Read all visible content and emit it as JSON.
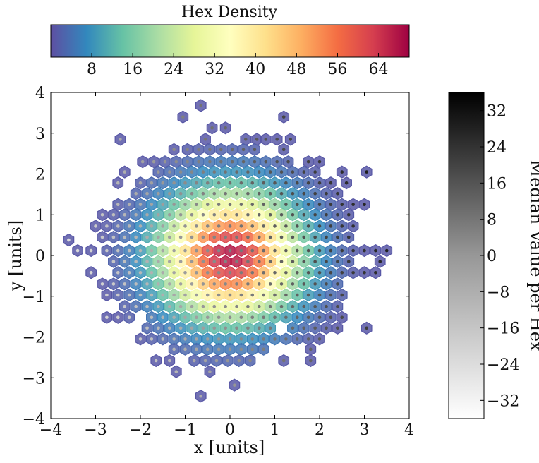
{
  "chart_data": {
    "type": "heatmap",
    "subtype": "hexbin",
    "xlabel": "x [units]",
    "ylabel": "y [units]",
    "xlim": [
      -4,
      4
    ],
    "ylim": [
      -4,
      4
    ],
    "x_ticks": [
      -4,
      -3,
      -2,
      -1,
      0,
      1,
      2,
      3,
      4
    ],
    "y_ticks": [
      -4,
      -3,
      -2,
      -1,
      0,
      1,
      2,
      3,
      4
    ],
    "grid": false,
    "hex_spacing_x": 0.236,
    "hex_row_step_y": 0.205,
    "density_colorbar": {
      "title": "Hex Density",
      "colormap": "Spectral_r",
      "range": [
        0,
        70
      ],
      "ticks": [
        8,
        16,
        24,
        32,
        40,
        48,
        56,
        64
      ],
      "orientation": "horizontal",
      "placement": "top"
    },
    "median_colorbar": {
      "label": "Median Value per Hex",
      "colormap": "Greys",
      "range": [
        -36,
        36
      ],
      "ticks": [
        -32,
        -24,
        -16,
        -8,
        0,
        8,
        16,
        24,
        32
      ],
      "orientation": "vertical",
      "placement": "right"
    },
    "density_model": {
      "peak": 68,
      "sigma": 1.0
    },
    "median_model": {
      "slope": 7.5
    },
    "hexes": [
      [
        -0.65,
        3.68
      ],
      [
        -1.05,
        3.4
      ],
      [
        1.2,
        3.4
      ],
      [
        -0.4,
        3.13
      ],
      [
        -0.1,
        3.13
      ],
      [
        -2.45,
        2.85
      ],
      [
        -0.55,
        2.85
      ],
      [
        0.35,
        2.85
      ],
      [
        0.6,
        2.85
      ],
      [
        0.8,
        2.85
      ],
      [
        1.05,
        2.85
      ],
      [
        1.35,
        2.85
      ],
      [
        -1.25,
        2.6
      ],
      [
        -0.95,
        2.6
      ],
      [
        -0.7,
        2.6
      ],
      [
        -0.45,
        2.6
      ],
      [
        -0.2,
        2.6
      ],
      [
        0.05,
        2.6
      ],
      [
        0.3,
        2.6
      ],
      [
        0.55,
        2.6
      ],
      [
        1.2,
        2.6
      ],
      [
        -1.95,
        2.3
      ],
      [
        -1.7,
        2.3
      ],
      [
        -1.45,
        2.3
      ],
      [
        -1.2,
        2.3
      ],
      [
        -0.95,
        2.3
      ],
      [
        -0.7,
        2.3
      ],
      [
        -0.45,
        2.3
      ],
      [
        -0.2,
        2.3
      ],
      [
        0.05,
        2.3
      ],
      [
        0.3,
        2.3
      ],
      [
        0.55,
        2.3
      ],
      [
        0.8,
        2.3
      ],
      [
        1.05,
        2.3
      ],
      [
        1.3,
        2.3
      ],
      [
        1.75,
        2.3
      ],
      [
        2.0,
        2.3
      ],
      [
        -2.35,
        2.05
      ],
      [
        -1.6,
        2.05
      ],
      [
        -1.35,
        2.05
      ],
      [
        -1.1,
        2.05
      ],
      [
        -0.85,
        2.05
      ],
      [
        -0.6,
        2.05
      ],
      [
        -0.35,
        2.05
      ],
      [
        -0.1,
        2.05
      ],
      [
        0.15,
        2.05
      ],
      [
        0.4,
        2.05
      ],
      [
        0.65,
        2.05
      ],
      [
        0.9,
        2.05
      ],
      [
        1.15,
        2.05
      ],
      [
        1.4,
        2.05
      ],
      [
        1.65,
        2.05
      ],
      [
        1.9,
        2.05
      ],
      [
        2.5,
        2.05
      ],
      [
        3.05,
        2.05
      ],
      [
        -2.5,
        1.78
      ],
      [
        -2.0,
        1.78
      ],
      [
        -1.75,
        1.78
      ],
      [
        -1.5,
        1.78
      ],
      [
        -1.25,
        1.78
      ],
      [
        -1.0,
        1.78
      ],
      [
        -0.75,
        1.78
      ],
      [
        -0.5,
        1.78
      ],
      [
        -0.25,
        1.78
      ],
      [
        0.0,
        1.78
      ],
      [
        0.25,
        1.78
      ],
      [
        0.5,
        1.78
      ],
      [
        0.75,
        1.78
      ],
      [
        1.0,
        1.78
      ],
      [
        1.25,
        1.78
      ],
      [
        1.5,
        1.78
      ],
      [
        1.75,
        1.78
      ],
      [
        2.0,
        1.78
      ],
      [
        2.25,
        1.78
      ],
      [
        2.6,
        1.78
      ],
      [
        -2.1,
        1.52
      ],
      [
        -1.85,
        1.52
      ],
      [
        -1.6,
        1.52
      ],
      [
        -1.35,
        1.52
      ],
      [
        -1.1,
        1.52
      ],
      [
        -0.85,
        1.52
      ],
      [
        -0.6,
        1.52
      ],
      [
        -0.35,
        1.52
      ],
      [
        -0.1,
        1.52
      ],
      [
        0.15,
        1.52
      ],
      [
        0.4,
        1.52
      ],
      [
        0.65,
        1.52
      ],
      [
        0.9,
        1.52
      ],
      [
        1.15,
        1.52
      ],
      [
        1.4,
        1.52
      ],
      [
        1.65,
        1.52
      ],
      [
        1.9,
        1.52
      ],
      [
        2.15,
        1.52
      ],
      [
        2.4,
        1.52
      ],
      [
        -2.5,
        1.25
      ],
      [
        -2.25,
        1.25
      ],
      [
        -2.0,
        1.25
      ],
      [
        -1.75,
        1.25
      ],
      [
        -1.5,
        1.25
      ],
      [
        -1.25,
        1.25
      ],
      [
        -1.0,
        1.25
      ],
      [
        -0.75,
        1.25
      ],
      [
        -0.5,
        1.25
      ],
      [
        -0.25,
        1.25
      ],
      [
        0.0,
        1.25
      ],
      [
        0.25,
        1.25
      ],
      [
        0.5,
        1.25
      ],
      [
        0.75,
        1.25
      ],
      [
        1.0,
        1.25
      ],
      [
        1.25,
        1.25
      ],
      [
        1.5,
        1.25
      ],
      [
        1.75,
        1.25
      ],
      [
        2.0,
        1.25
      ],
      [
        2.25,
        1.25
      ],
      [
        2.5,
        1.25
      ],
      [
        2.75,
        1.25
      ],
      [
        3.0,
        1.25
      ],
      [
        -2.85,
        1.0
      ],
      [
        -2.6,
        1.0
      ],
      [
        -2.35,
        1.0
      ],
      [
        -2.1,
        1.0
      ],
      [
        -1.85,
        1.0
      ],
      [
        -1.6,
        1.0
      ],
      [
        -1.35,
        1.0
      ],
      [
        -1.1,
        1.0
      ],
      [
        -0.85,
        1.0
      ],
      [
        -0.6,
        1.0
      ],
      [
        -0.35,
        1.0
      ],
      [
        -0.1,
        1.0
      ],
      [
        0.15,
        1.0
      ],
      [
        0.4,
        1.0
      ],
      [
        0.65,
        1.0
      ],
      [
        0.9,
        1.0
      ],
      [
        1.15,
        1.0
      ],
      [
        1.4,
        1.0
      ],
      [
        1.65,
        1.0
      ],
      [
        1.9,
        1.0
      ],
      [
        2.15,
        1.0
      ],
      [
        2.4,
        1.0
      ],
      [
        2.65,
        1.0
      ],
      [
        -3.0,
        0.72
      ],
      [
        -2.75,
        0.72
      ],
      [
        -2.5,
        0.72
      ],
      [
        -2.25,
        0.72
      ],
      [
        -2.0,
        0.72
      ],
      [
        -1.75,
        0.72
      ],
      [
        -1.5,
        0.72
      ],
      [
        -1.25,
        0.72
      ],
      [
        -1.0,
        0.72
      ],
      [
        -0.75,
        0.72
      ],
      [
        -0.5,
        0.72
      ],
      [
        -0.25,
        0.72
      ],
      [
        0.0,
        0.72
      ],
      [
        0.25,
        0.72
      ],
      [
        0.5,
        0.72
      ],
      [
        0.75,
        0.72
      ],
      [
        1.0,
        0.72
      ],
      [
        1.25,
        0.72
      ],
      [
        1.5,
        0.72
      ],
      [
        1.75,
        0.72
      ],
      [
        2.0,
        0.72
      ],
      [
        2.25,
        0.72
      ],
      [
        2.5,
        0.72
      ],
      [
        2.75,
        0.72
      ],
      [
        -3.6,
        0.38
      ],
      [
        -2.85,
        0.45
      ],
      [
        -2.6,
        0.45
      ],
      [
        -2.35,
        0.45
      ],
      [
        -2.1,
        0.45
      ],
      [
        -1.85,
        0.45
      ],
      [
        -1.6,
        0.45
      ],
      [
        -1.35,
        0.45
      ],
      [
        -1.1,
        0.45
      ],
      [
        -0.85,
        0.45
      ],
      [
        -0.6,
        0.45
      ],
      [
        -0.35,
        0.45
      ],
      [
        -0.1,
        0.45
      ],
      [
        0.15,
        0.45
      ],
      [
        0.4,
        0.45
      ],
      [
        0.65,
        0.45
      ],
      [
        0.9,
        0.45
      ],
      [
        1.15,
        0.45
      ],
      [
        1.4,
        0.45
      ],
      [
        1.65,
        0.45
      ],
      [
        1.9,
        0.45
      ],
      [
        2.15,
        0.45
      ],
      [
        2.4,
        0.45
      ],
      [
        2.65,
        0.45
      ],
      [
        -3.4,
        0.12
      ],
      [
        -3.1,
        0.12
      ],
      [
        -2.75,
        0.12
      ],
      [
        -2.5,
        0.12
      ],
      [
        -2.25,
        0.12
      ],
      [
        -2.0,
        0.12
      ],
      [
        -1.75,
        0.12
      ],
      [
        -1.5,
        0.12
      ],
      [
        -1.25,
        0.12
      ],
      [
        -1.0,
        0.12
      ],
      [
        -0.75,
        0.12
      ],
      [
        -0.5,
        0.12
      ],
      [
        -0.25,
        0.12
      ],
      [
        0.0,
        0.12
      ],
      [
        0.25,
        0.12
      ],
      [
        0.5,
        0.12
      ],
      [
        0.75,
        0.12
      ],
      [
        1.0,
        0.12
      ],
      [
        1.25,
        0.12
      ],
      [
        1.5,
        0.12
      ],
      [
        1.75,
        0.12
      ],
      [
        2.0,
        0.12
      ],
      [
        2.25,
        0.12
      ],
      [
        2.5,
        0.12
      ],
      [
        2.75,
        0.12
      ],
      [
        3.0,
        0.12
      ],
      [
        3.25,
        0.12
      ],
      [
        3.5,
        0.12
      ],
      [
        -2.6,
        -0.15
      ],
      [
        -2.35,
        -0.15
      ],
      [
        -2.1,
        -0.15
      ],
      [
        -1.85,
        -0.15
      ],
      [
        -1.6,
        -0.15
      ],
      [
        -1.35,
        -0.15
      ],
      [
        -1.1,
        -0.15
      ],
      [
        -0.85,
        -0.15
      ],
      [
        -0.6,
        -0.15
      ],
      [
        -0.35,
        -0.15
      ],
      [
        -0.1,
        -0.15
      ],
      [
        0.15,
        -0.15
      ],
      [
        0.4,
        -0.15
      ],
      [
        0.65,
        -0.15
      ],
      [
        0.9,
        -0.15
      ],
      [
        1.15,
        -0.15
      ],
      [
        1.4,
        -0.15
      ],
      [
        1.65,
        -0.15
      ],
      [
        1.9,
        -0.15
      ],
      [
        2.15,
        -0.15
      ],
      [
        2.4,
        -0.15
      ],
      [
        2.65,
        -0.15
      ],
      [
        3.35,
        -0.15
      ],
      [
        -3.1,
        -0.42
      ],
      [
        -2.5,
        -0.42
      ],
      [
        -2.25,
        -0.42
      ],
      [
        -2.0,
        -0.42
      ],
      [
        -1.75,
        -0.42
      ],
      [
        -1.5,
        -0.42
      ],
      [
        -1.25,
        -0.42
      ],
      [
        -1.0,
        -0.42
      ],
      [
        -0.75,
        -0.42
      ],
      [
        -0.5,
        -0.42
      ],
      [
        -0.25,
        -0.42
      ],
      [
        0.0,
        -0.42
      ],
      [
        0.25,
        -0.42
      ],
      [
        0.5,
        -0.42
      ],
      [
        0.75,
        -0.42
      ],
      [
        1.0,
        -0.42
      ],
      [
        1.25,
        -0.42
      ],
      [
        1.5,
        -0.42
      ],
      [
        1.75,
        -0.42
      ],
      [
        2.0,
        -0.42
      ],
      [
        2.25,
        -0.42
      ],
      [
        2.5,
        -0.42
      ],
      [
        2.75,
        -0.42
      ],
      [
        3.0,
        -0.42
      ],
      [
        3.25,
        -0.42
      ],
      [
        -2.85,
        -0.7
      ],
      [
        -2.6,
        -0.7
      ],
      [
        -2.35,
        -0.7
      ],
      [
        -2.1,
        -0.7
      ],
      [
        -1.85,
        -0.7
      ],
      [
        -1.6,
        -0.7
      ],
      [
        -1.35,
        -0.7
      ],
      [
        -1.1,
        -0.7
      ],
      [
        -0.85,
        -0.7
      ],
      [
        -0.6,
        -0.7
      ],
      [
        -0.35,
        -0.7
      ],
      [
        -0.1,
        -0.7
      ],
      [
        0.15,
        -0.7
      ],
      [
        0.4,
        -0.7
      ],
      [
        0.65,
        -0.7
      ],
      [
        0.9,
        -0.7
      ],
      [
        1.15,
        -0.7
      ],
      [
        1.4,
        -0.7
      ],
      [
        1.65,
        -0.7
      ],
      [
        1.9,
        -0.7
      ],
      [
        2.15,
        -0.7
      ],
      [
        2.4,
        -0.7
      ],
      [
        -2.75,
        -0.97
      ],
      [
        -2.5,
        -0.97
      ],
      [
        -2.25,
        -0.97
      ],
      [
        -2.0,
        -0.97
      ],
      [
        -1.75,
        -0.97
      ],
      [
        -1.5,
        -0.97
      ],
      [
        -1.25,
        -0.97
      ],
      [
        -1.0,
        -0.97
      ],
      [
        -0.75,
        -0.97
      ],
      [
        -0.5,
        -0.97
      ],
      [
        -0.25,
        -0.97
      ],
      [
        0.0,
        -0.97
      ],
      [
        0.25,
        -0.97
      ],
      [
        0.5,
        -0.97
      ],
      [
        0.75,
        -0.97
      ],
      [
        1.0,
        -0.97
      ],
      [
        1.25,
        -0.97
      ],
      [
        1.5,
        -0.97
      ],
      [
        1.75,
        -0.97
      ],
      [
        2.0,
        -0.97
      ],
      [
        2.25,
        -0.97
      ],
      [
        2.5,
        -0.97
      ],
      [
        -2.35,
        -1.25
      ],
      [
        -2.1,
        -1.25
      ],
      [
        -1.85,
        -1.25
      ],
      [
        -1.6,
        -1.25
      ],
      [
        -1.35,
        -1.25
      ],
      [
        -1.1,
        -1.25
      ],
      [
        -0.85,
        -1.25
      ],
      [
        -0.6,
        -1.25
      ],
      [
        -0.35,
        -1.25
      ],
      [
        -0.1,
        -1.25
      ],
      [
        0.15,
        -1.25
      ],
      [
        0.4,
        -1.25
      ],
      [
        0.65,
        -1.25
      ],
      [
        0.9,
        -1.25
      ],
      [
        1.15,
        -1.25
      ],
      [
        1.4,
        -1.25
      ],
      [
        1.65,
        -1.25
      ],
      [
        1.9,
        -1.25
      ],
      [
        2.15,
        -1.25
      ],
      [
        2.4,
        -1.25
      ],
      [
        -2.75,
        -1.52
      ],
      [
        -2.5,
        -1.52
      ],
      [
        -2.25,
        -1.52
      ],
      [
        -1.75,
        -1.52
      ],
      [
        -1.5,
        -1.52
      ],
      [
        -1.25,
        -1.52
      ],
      [
        -1.0,
        -1.52
      ],
      [
        -0.75,
        -1.52
      ],
      [
        -0.5,
        -1.52
      ],
      [
        -0.25,
        -1.52
      ],
      [
        0.0,
        -1.52
      ],
      [
        0.25,
        -1.52
      ],
      [
        0.5,
        -1.52
      ],
      [
        0.75,
        -1.52
      ],
      [
        1.0,
        -1.52
      ],
      [
        1.25,
        -1.52
      ],
      [
        1.5,
        -1.52
      ],
      [
        1.75,
        -1.52
      ],
      [
        2.0,
        -1.52
      ],
      [
        2.25,
        -1.52
      ],
      [
        2.5,
        -1.52
      ],
      [
        -1.85,
        -1.78
      ],
      [
        -1.6,
        -1.78
      ],
      [
        -1.35,
        -1.78
      ],
      [
        -1.1,
        -1.78
      ],
      [
        -0.85,
        -1.78
      ],
      [
        -0.6,
        -1.78
      ],
      [
        -0.35,
        -1.78
      ],
      [
        -0.1,
        -1.78
      ],
      [
        0.15,
        -1.78
      ],
      [
        0.4,
        -1.78
      ],
      [
        0.65,
        -1.78
      ],
      [
        0.9,
        -1.78
      ],
      [
        1.4,
        -1.78
      ],
      [
        1.65,
        -1.78
      ],
      [
        1.9,
        -1.78
      ],
      [
        2.15,
        -1.78
      ],
      [
        2.4,
        -1.78
      ],
      [
        3.05,
        -1.78
      ],
      [
        -2.0,
        -2.05
      ],
      [
        -1.75,
        -2.05
      ],
      [
        -1.5,
        -2.05
      ],
      [
        -1.25,
        -2.05
      ],
      [
        -1.0,
        -2.05
      ],
      [
        -0.75,
        -2.05
      ],
      [
        -0.5,
        -2.05
      ],
      [
        -0.25,
        -2.05
      ],
      [
        0.0,
        -2.05
      ],
      [
        0.25,
        -2.05
      ],
      [
        0.5,
        -2.05
      ],
      [
        0.75,
        -2.05
      ],
      [
        1.0,
        -2.05
      ],
      [
        1.25,
        -2.05
      ],
      [
        1.5,
        -2.05
      ],
      [
        1.75,
        -2.05
      ],
      [
        2.0,
        -2.05
      ],
      [
        -1.25,
        -2.3
      ],
      [
        -1.0,
        -2.3
      ],
      [
        -0.75,
        -2.3
      ],
      [
        -0.5,
        -2.3
      ],
      [
        -0.25,
        -2.3
      ],
      [
        0.0,
        -2.3
      ],
      [
        0.25,
        -2.3
      ],
      [
        0.5,
        -2.3
      ],
      [
        0.75,
        -2.3
      ],
      [
        1.8,
        -2.3
      ],
      [
        -1.65,
        -2.58
      ],
      [
        -1.35,
        -2.58
      ],
      [
        -0.8,
        -2.58
      ],
      [
        -0.55,
        -2.58
      ],
      [
        -0.3,
        -2.58
      ],
      [
        -0.05,
        -2.58
      ],
      [
        0.2,
        -2.58
      ],
      [
        0.45,
        -2.58
      ],
      [
        1.2,
        -2.58
      ],
      [
        1.8,
        -2.58
      ],
      [
        -1.2,
        -2.85
      ],
      [
        -0.45,
        -2.85
      ],
      [
        0.1,
        -3.18
      ],
      [
        -0.65,
        -3.45
      ]
    ]
  }
}
